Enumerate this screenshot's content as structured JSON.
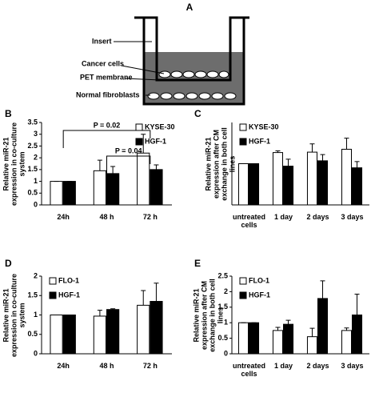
{
  "diagram": {
    "label": "A",
    "parts": [
      "Insert",
      "Cancer cells",
      "PET membrane",
      "Normal fibroblasts"
    ]
  },
  "chart_data": [
    {
      "type": "bar",
      "panel": "B",
      "ylabel": "Relative miR-21 expression in co-culture system",
      "categories": [
        "24h",
        "48 h",
        "72 h"
      ],
      "series": [
        {
          "name": "KYSE-30",
          "color": "#ffffff",
          "values": [
            1,
            1.45,
            2.2
          ],
          "errors": [
            0,
            0.45,
            0.8
          ]
        },
        {
          "name": "HGF-1",
          "color": "#000000",
          "values": [
            1,
            1.33,
            1.5
          ],
          "errors": [
            0,
            0.3,
            0.2
          ]
        }
      ],
      "ylim": [
        0,
        3.5
      ],
      "yticks": [
        0,
        0.5,
        1,
        1.5,
        2,
        2.5,
        3,
        3.5
      ],
      "legend": "upper right",
      "annotations": [
        "P = 0.02",
        "P = 0.04"
      ]
    },
    {
      "type": "bar",
      "panel": "C",
      "ylabel": "Relative miR-21 expression after CM exchange in both cell lines",
      "categories": [
        "untreated cells",
        "1 day",
        "2 days",
        "3 days"
      ],
      "series": [
        {
          "name": "KYSE-30",
          "color": "#ffffff",
          "values": [
            1,
            1.27,
            1.28,
            1.35
          ],
          "errors": [
            0,
            0.04,
            0.2,
            0.27
          ]
        },
        {
          "name": "HGF-1",
          "color": "#000000",
          "values": [
            1,
            0.94,
            1.07,
            0.9
          ],
          "errors": [
            0,
            0.17,
            0.15,
            0.15
          ]
        }
      ],
      "ylim": [
        0,
        2
      ],
      "legend": "upper left"
    },
    {
      "type": "bar",
      "panel": "D",
      "ylabel": "Relative miR-21 expression in co-culture system",
      "categories": [
        "24h",
        "48 h",
        "72 h"
      ],
      "series": [
        {
          "name": "FLO-1",
          "color": "#ffffff",
          "values": [
            1,
            0.97,
            1.25
          ],
          "errors": [
            0,
            0.15,
            0.38
          ]
        },
        {
          "name": "HGF-1",
          "color": "#000000",
          "values": [
            1,
            1.14,
            1.35
          ],
          "errors": [
            0,
            0.02,
            0.47
          ]
        }
      ],
      "ylim": [
        0,
        2
      ],
      "yticks": [
        0,
        0.5,
        1,
        1.5,
        2
      ],
      "legend": "upper left"
    },
    {
      "type": "bar",
      "panel": "E",
      "ylabel": "Relative miR-21 expression after CM exchange in both cell lines",
      "categories": [
        "untreated cells",
        "1 day",
        "2 days",
        "3 days"
      ],
      "series": [
        {
          "name": "FLO-1",
          "color": "#ffffff",
          "values": [
            1,
            0.75,
            0.55,
            0.75
          ],
          "errors": [
            0,
            0.1,
            0.27,
            0.08
          ]
        },
        {
          "name": "HGF-1",
          "color": "#000000",
          "values": [
            1,
            0.95,
            1.78,
            1.25
          ],
          "errors": [
            0,
            0.13,
            0.57,
            0.67
          ]
        }
      ],
      "ylim": [
        0,
        2.5
      ],
      "yticks": [
        0,
        0.5,
        1,
        1.5,
        2,
        2.5
      ],
      "legend": "upper left"
    }
  ]
}
